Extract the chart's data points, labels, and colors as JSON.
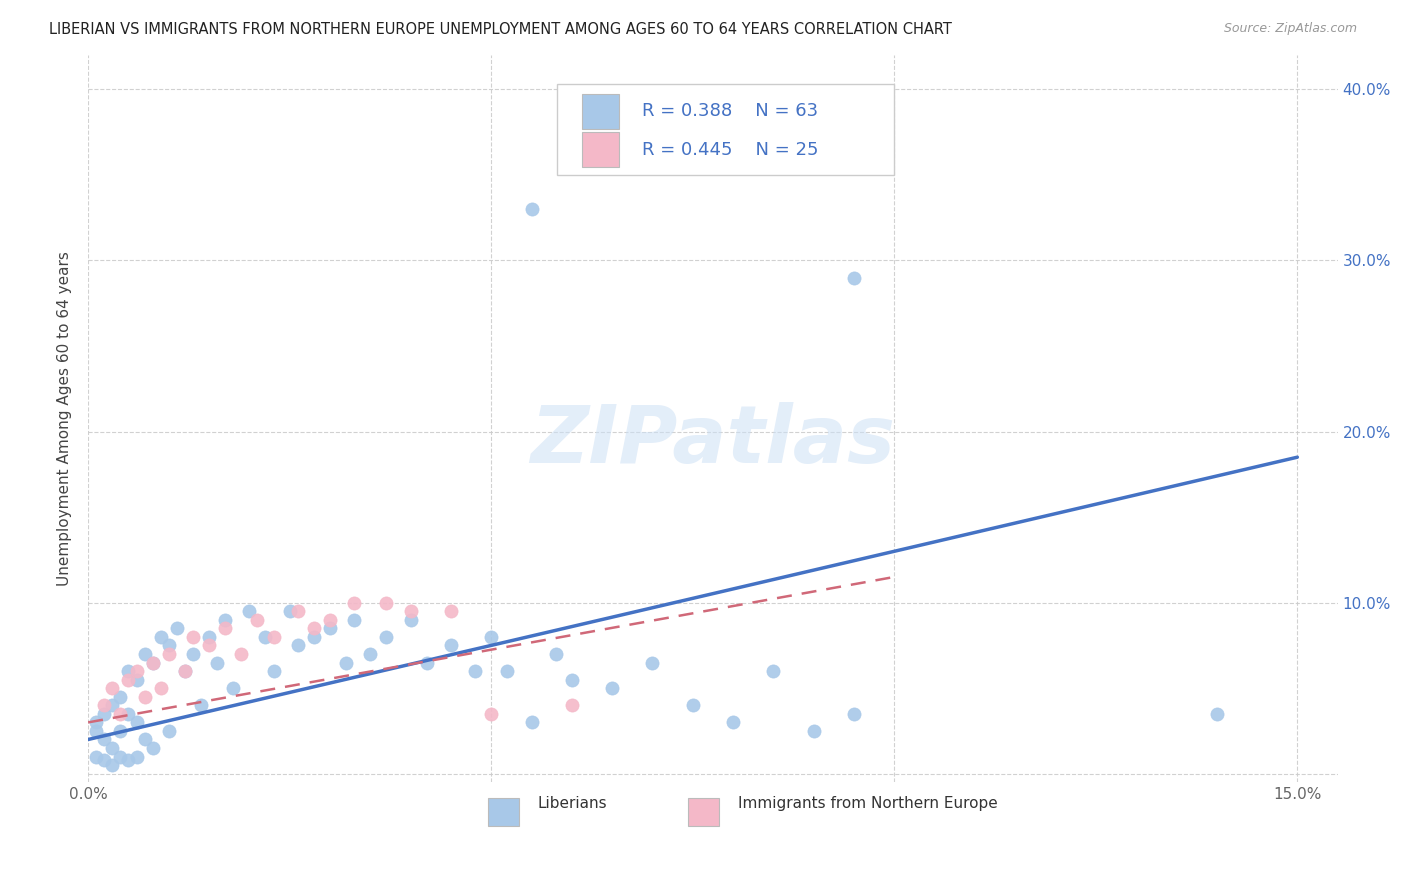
{
  "title": "LIBERIAN VS IMMIGRANTS FROM NORTHERN EUROPE UNEMPLOYMENT AMONG AGES 60 TO 64 YEARS CORRELATION CHART",
  "source": "Source: ZipAtlas.com",
  "ylabel": "Unemployment Among Ages 60 to 64 years",
  "xlim": [
    0.0,
    0.155
  ],
  "ylim": [
    -0.005,
    0.42
  ],
  "xtick_positions": [
    0.0,
    0.05,
    0.1,
    0.15
  ],
  "xtick_labels": [
    "0.0%",
    "",
    "",
    "15.0%"
  ],
  "ytick_positions": [
    0.0,
    0.1,
    0.2,
    0.3,
    0.4
  ],
  "ytick_labels_right": [
    "",
    "10.0%",
    "20.0%",
    "30.0%",
    "40.0%"
  ],
  "color_blue": "#a8c8e8",
  "color_pink": "#f4b8c8",
  "line_blue": "#4472c4",
  "line_pink": "#d06878",
  "watermark": "ZIPatlas",
  "lib_line_x": [
    0.0,
    0.15
  ],
  "lib_line_y": [
    0.02,
    0.185
  ],
  "neu_line_x": [
    0.0,
    0.1
  ],
  "neu_line_y": [
    0.03,
    0.115
  ],
  "liberian_x": [
    0.001,
    0.001,
    0.001,
    0.002,
    0.002,
    0.002,
    0.003,
    0.003,
    0.003,
    0.004,
    0.004,
    0.004,
    0.005,
    0.005,
    0.005,
    0.006,
    0.006,
    0.006,
    0.007,
    0.007,
    0.008,
    0.008,
    0.009,
    0.01,
    0.01,
    0.011,
    0.012,
    0.013,
    0.014,
    0.015,
    0.016,
    0.017,
    0.018,
    0.02,
    0.022,
    0.023,
    0.025,
    0.026,
    0.028,
    0.03,
    0.032,
    0.033,
    0.035,
    0.037,
    0.04,
    0.042,
    0.045,
    0.048,
    0.05,
    0.052,
    0.055,
    0.058,
    0.06,
    0.065,
    0.07,
    0.075,
    0.08,
    0.085,
    0.09,
    0.095,
    0.055,
    0.095,
    0.14
  ],
  "liberian_y": [
    0.03,
    0.025,
    0.01,
    0.035,
    0.02,
    0.008,
    0.04,
    0.015,
    0.005,
    0.045,
    0.025,
    0.01,
    0.06,
    0.035,
    0.008,
    0.055,
    0.03,
    0.01,
    0.07,
    0.02,
    0.065,
    0.015,
    0.08,
    0.075,
    0.025,
    0.085,
    0.06,
    0.07,
    0.04,
    0.08,
    0.065,
    0.09,
    0.05,
    0.095,
    0.08,
    0.06,
    0.095,
    0.075,
    0.08,
    0.085,
    0.065,
    0.09,
    0.07,
    0.08,
    0.09,
    0.065,
    0.075,
    0.06,
    0.08,
    0.06,
    0.03,
    0.07,
    0.055,
    0.05,
    0.065,
    0.04,
    0.03,
    0.06,
    0.025,
    0.035,
    0.33,
    0.29,
    0.035
  ],
  "northern_eu_x": [
    0.002,
    0.003,
    0.004,
    0.005,
    0.006,
    0.007,
    0.008,
    0.009,
    0.01,
    0.012,
    0.013,
    0.015,
    0.017,
    0.019,
    0.021,
    0.023,
    0.026,
    0.028,
    0.03,
    0.033,
    0.037,
    0.04,
    0.045,
    0.05,
    0.06
  ],
  "northern_eu_y": [
    0.04,
    0.05,
    0.035,
    0.055,
    0.06,
    0.045,
    0.065,
    0.05,
    0.07,
    0.06,
    0.08,
    0.075,
    0.085,
    0.07,
    0.09,
    0.08,
    0.095,
    0.085,
    0.09,
    0.1,
    0.1,
    0.095,
    0.095,
    0.035,
    0.04
  ]
}
